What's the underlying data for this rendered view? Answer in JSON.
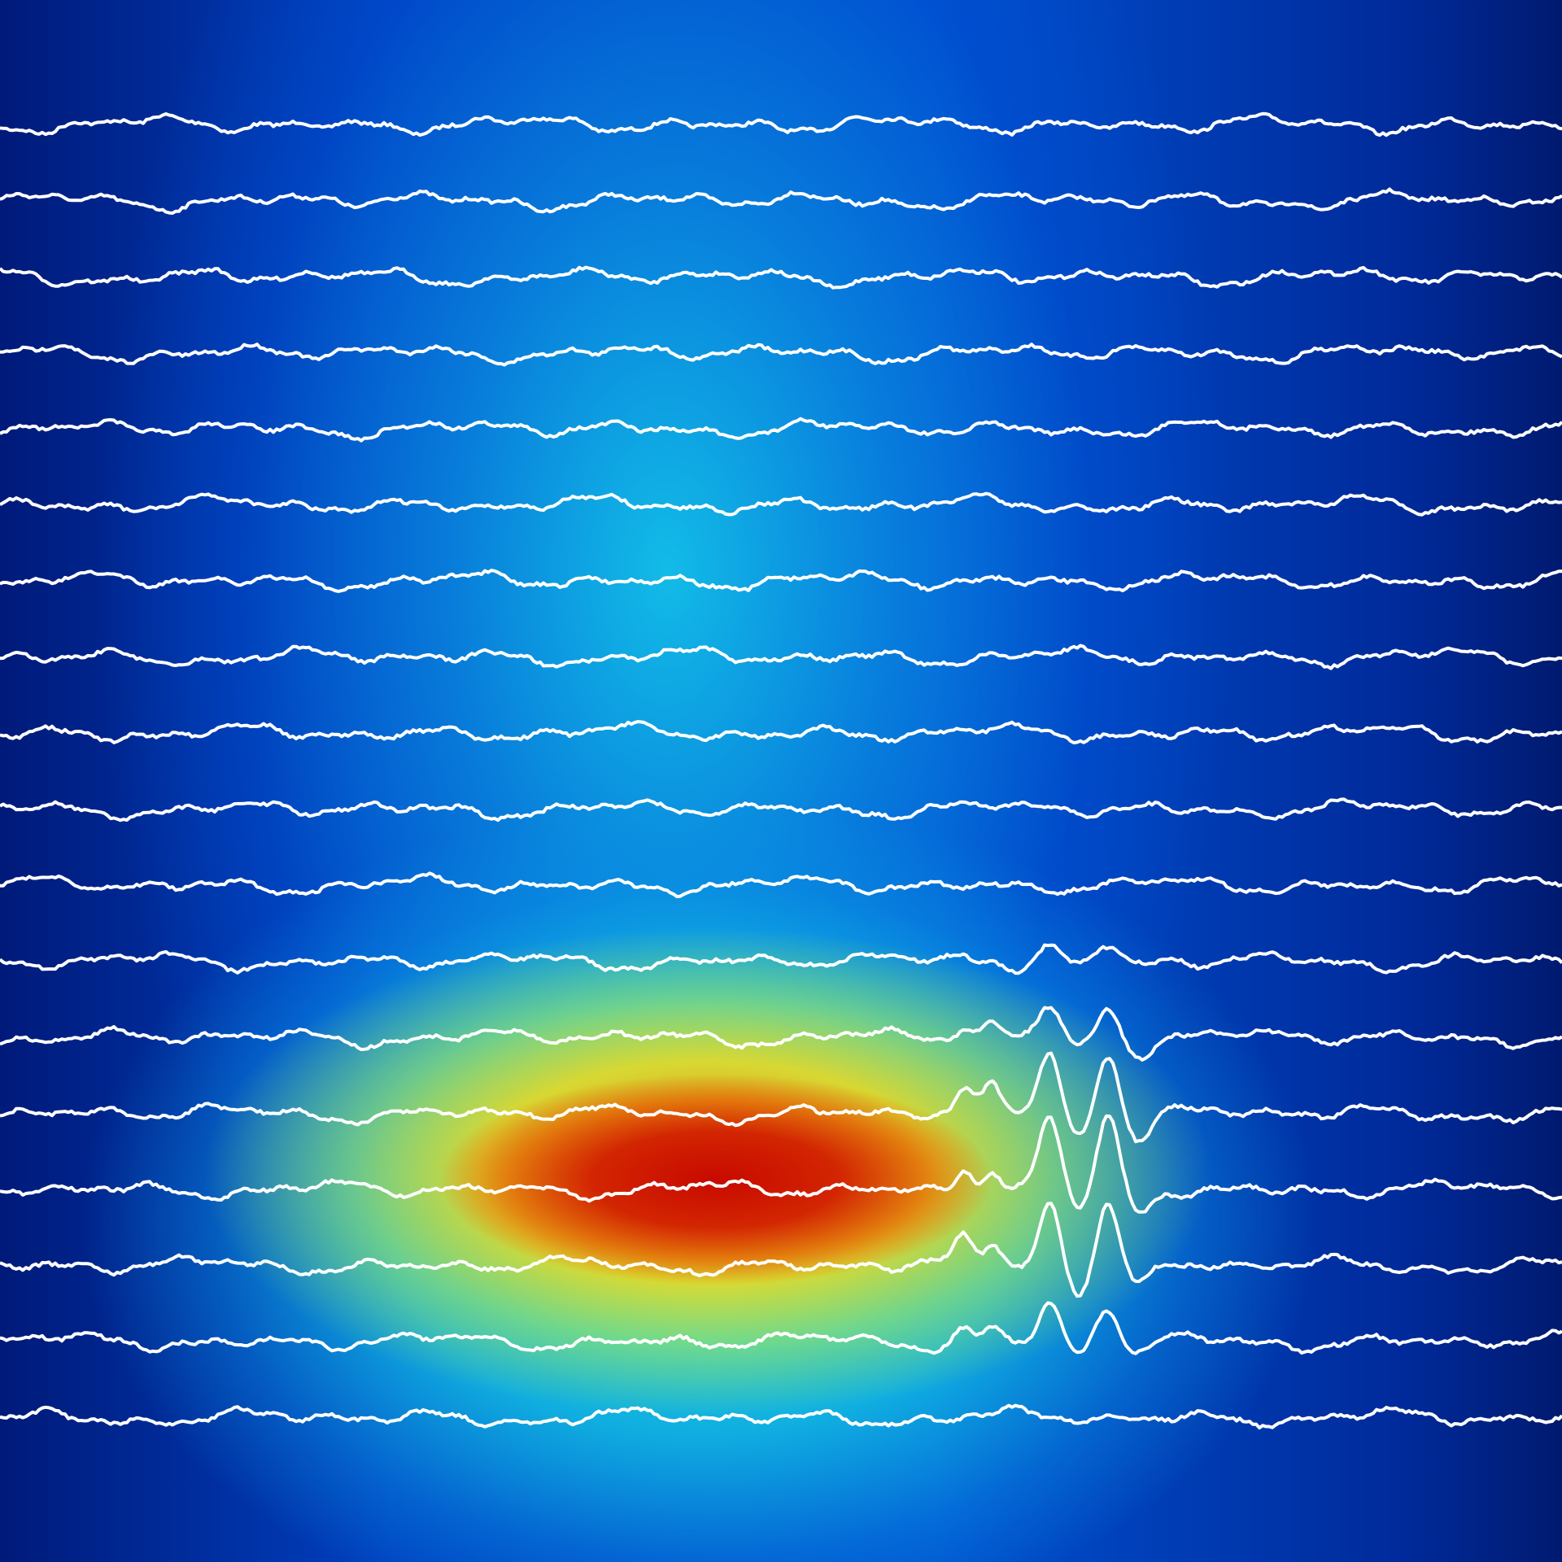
{
  "background": {
    "type": "heatmap",
    "colormap": [
      "#001a7a",
      "#0050d0",
      "#14c8eb",
      "#faDC14",
      "#f07800",
      "#c80a00"
    ]
  },
  "traces": {
    "color": "#ffffff"
  }
}
